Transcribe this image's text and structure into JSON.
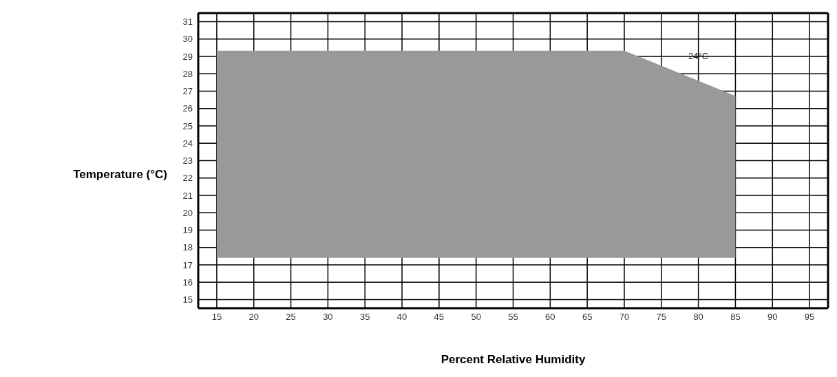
{
  "chart_data": {
    "type": "line",
    "xlabel": "Percent Relative Humidity",
    "ylabel": "Temperature (°C)",
    "x": [
      15,
      70,
      85
    ],
    "series": [
      {
        "color": "#999999",
        "values": [
          29.3,
          29.3,
          26.7
        ],
        "lower": [
          17.4,
          17.4,
          17.4
        ],
        "upper": [
          29.3,
          29.3,
          26.7
        ]
      }
    ],
    "xlim": [
      12.5,
      97.5
    ],
    "xticks": [
      15,
      20,
      25,
      30,
      35,
      40,
      45,
      50,
      55,
      60,
      65,
      70,
      75,
      80,
      85,
      90,
      95
    ],
    "ylim": [
      14.5,
      31.5
    ],
    "yticks": [
      15,
      16,
      17,
      18,
      19,
      20,
      21,
      22,
      23,
      24,
      25,
      26,
      27,
      28,
      29,
      30,
      31
    ],
    "grid": true,
    "annotations": [
      "24°C"
    ]
  }
}
